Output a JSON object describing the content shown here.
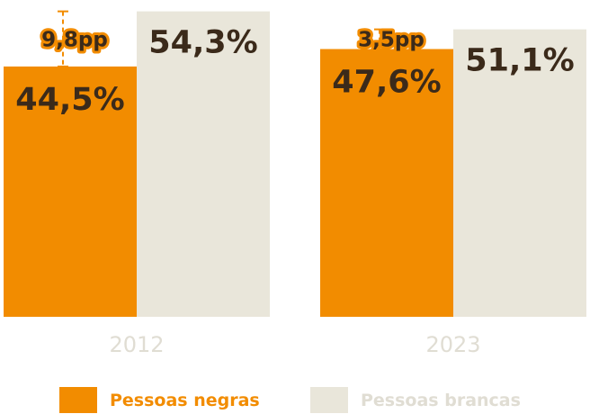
{
  "chart_data": {
    "type": "bar",
    "categories": [
      "2012",
      "2023"
    ],
    "series": [
      {
        "name": "Pessoas negras",
        "color": "#f28c00",
        "values": [
          44.5,
          47.6
        ],
        "labels": [
          "44,5%",
          "47,6%"
        ]
      },
      {
        "name": "Pessoas brancas",
        "color": "#e9e6da",
        "values": [
          54.3,
          51.1
        ],
        "labels": [
          "54,3%",
          "51,1%"
        ]
      }
    ],
    "gaps": [
      {
        "value": 9.8,
        "label": "9,8pp"
      },
      {
        "value": 3.5,
        "label": "3,5pp"
      }
    ],
    "title": "",
    "xlabel": "",
    "ylabel": "",
    "ylim": [
      0,
      56
    ],
    "grid": false,
    "legend": "bottom"
  }
}
